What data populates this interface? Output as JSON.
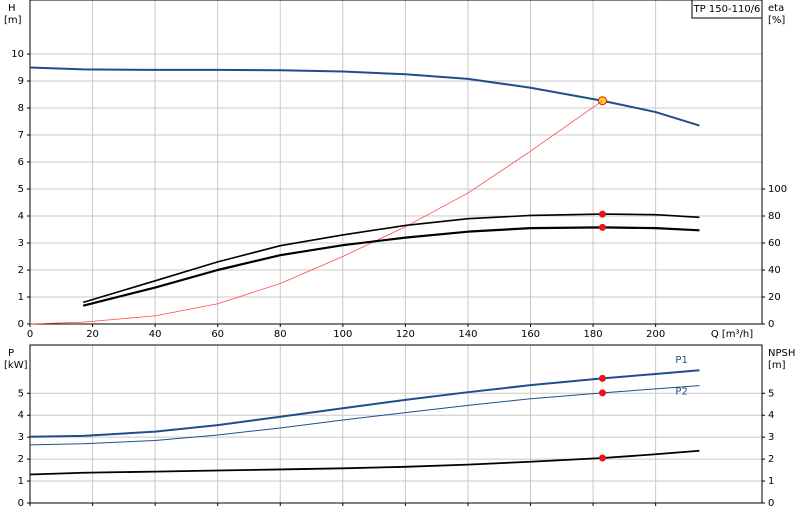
{
  "chart_data": [
    {
      "type": "line",
      "model": "TP 150-110/6",
      "ylabel": "H",
      "yunit": "[m]",
      "y2label": "eta",
      "y2unit": "[%]",
      "xlabel": "Q [m³/h]",
      "xlim": [
        0,
        234
      ],
      "xticks": [
        0,
        20,
        40,
        60,
        80,
        100,
        120,
        140,
        160,
        180,
        200
      ],
      "ylim": [
        0,
        12
      ],
      "yticks": [
        0,
        1,
        2,
        3,
        4,
        5,
        6,
        7,
        8,
        9,
        10
      ],
      "y2lim": [
        0,
        240
      ],
      "y2ticks": [
        0,
        20,
        40,
        60,
        80,
        100
      ],
      "grid": true,
      "duty_x": 183,
      "x": [
        0,
        17,
        40,
        60,
        80,
        100,
        120,
        140,
        160,
        183,
        200,
        214
      ],
      "series": [
        {
          "color": "#1f4e8c",
          "width": 2,
          "marker": "#ffd21f",
          "values": [
            9.5,
            9.43,
            9.41,
            9.41,
            9.4,
            9.35,
            9.25,
            9.08,
            8.75,
            8.27,
            7.85,
            7.35
          ]
        },
        {
          "color": "#ff4a4a",
          "width": 0.8,
          "values": [
            0,
            0.07,
            0.3,
            0.75,
            1.5,
            2.5,
            3.6,
            4.85,
            6.4,
            8.27,
            null,
            null
          ]
        },
        {
          "color": "#000000",
          "width": 1.6,
          "marker": "#e8141a",
          "axis": "y2",
          "values": [
            null,
            16,
            32,
            46,
            58,
            66,
            73,
            78,
            80.4,
            81.4,
            81,
            79
          ]
        },
        {
          "color": "#000000",
          "width": 2.2,
          "marker": "#e8141a",
          "axis": "y2",
          "values": [
            null,
            13.6,
            27,
            40,
            51,
            58.4,
            64,
            68.4,
            71,
            71.6,
            71,
            69.4
          ]
        }
      ]
    },
    {
      "type": "line",
      "ylabel": "P",
      "yunit": "[kW]",
      "y2label": "NPSH",
      "y2unit": "[m]",
      "xlim": [
        0,
        234
      ],
      "xticks": [
        0,
        20,
        40,
        60,
        80,
        100,
        120,
        140,
        160,
        180,
        200
      ],
      "ylim": [
        0,
        7.2
      ],
      "yticks": [
        0,
        1,
        2,
        3,
        4,
        5
      ],
      "y2lim": [
        0,
        7.2
      ],
      "y2ticks": [
        0,
        1,
        2,
        3,
        4,
        5
      ],
      "grid": true,
      "duty_x": 183,
      "x": [
        0,
        17,
        40,
        60,
        80,
        100,
        120,
        140,
        160,
        183,
        200,
        214
      ],
      "series": [
        {
          "name": "P1",
          "color": "#1f4e8c",
          "width": 2,
          "marker": "#e8141a",
          "values": [
            3.02,
            3.06,
            3.25,
            3.55,
            3.93,
            4.32,
            4.7,
            5.05,
            5.37,
            5.68,
            5.88,
            6.05
          ]
        },
        {
          "name": "P2",
          "color": "#1f4e8c",
          "width": 1,
          "marker": "#e8141a",
          "values": [
            2.65,
            2.7,
            2.85,
            3.1,
            3.42,
            3.78,
            4.12,
            4.45,
            4.75,
            5.02,
            5.2,
            5.35
          ]
        },
        {
          "color": "#000000",
          "width": 1.8,
          "marker": "#e8141a",
          "axis": "y2",
          "values": [
            1.3,
            1.38,
            1.43,
            1.48,
            1.53,
            1.58,
            1.65,
            1.75,
            1.88,
            2.05,
            2.22,
            2.38
          ]
        }
      ]
    }
  ]
}
